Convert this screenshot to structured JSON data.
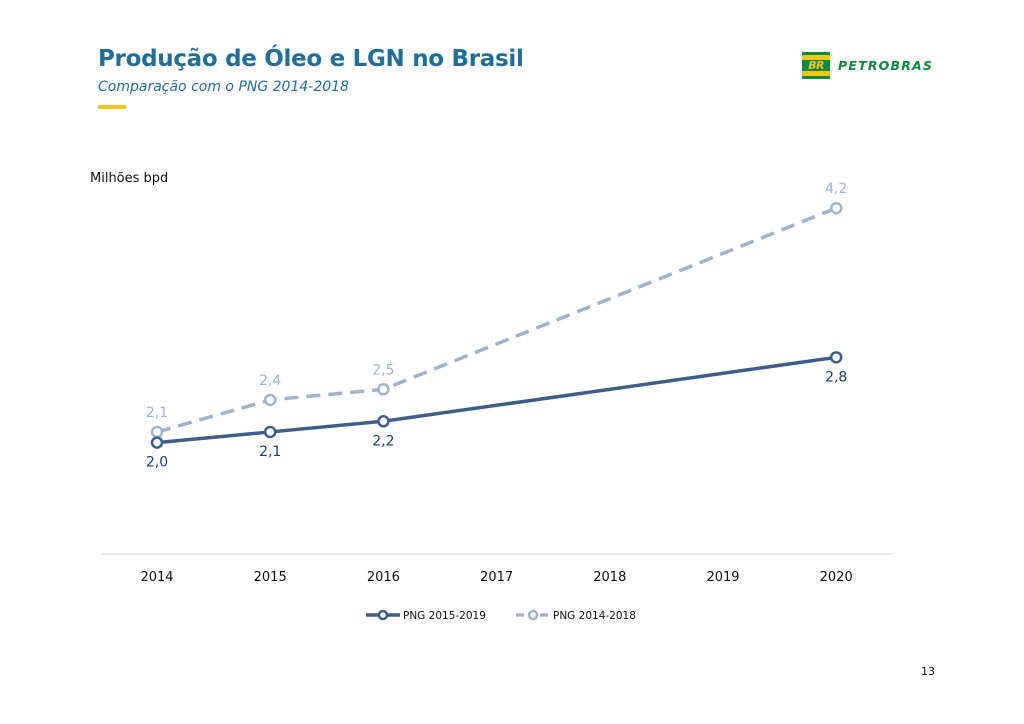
{
  "header": {
    "title": "Produção de Óleo e LGN no Brasil",
    "subtitle": "Comparação com o PNG 2014-2018",
    "accent_color": "#f5c518",
    "title_color": "#1f6f9a"
  },
  "logo": {
    "mark_text": "BR",
    "brand_text": "PETROBRAS",
    "brand_color": "#0b8a3e"
  },
  "chart_data": {
    "type": "line",
    "ylabel": "Milhões bpd",
    "xlabel": "",
    "categories": [
      "2014",
      "2015",
      "2016",
      "2017",
      "2018",
      "2019",
      "2020"
    ],
    "ylim": [
      0,
      4.2
    ],
    "grid": false,
    "legend_position": "bottom-center",
    "series": [
      {
        "name": "PNG 2015-2019",
        "color": "#3b5f8c",
        "style": "solid",
        "points": [
          {
            "x": "2014",
            "y": 2.0,
            "label": "2,0"
          },
          {
            "x": "2015",
            "y": 2.1,
            "label": "2,1"
          },
          {
            "x": "2016",
            "y": 2.2,
            "label": "2,2"
          },
          {
            "x": "2020",
            "y": 2.8,
            "label": "2,8"
          }
        ]
      },
      {
        "name": "PNG 2014-2018",
        "color": "#9fb3cf",
        "style": "dashed",
        "points": [
          {
            "x": "2014",
            "y": 2.1,
            "label": "2,1"
          },
          {
            "x": "2015",
            "y": 2.4,
            "label": "2,4"
          },
          {
            "x": "2016",
            "y": 2.5,
            "label": "2,5"
          },
          {
            "x": "2020",
            "y": 4.2,
            "label": "4,2"
          }
        ]
      }
    ]
  },
  "footer": {
    "page_number": "13"
  }
}
